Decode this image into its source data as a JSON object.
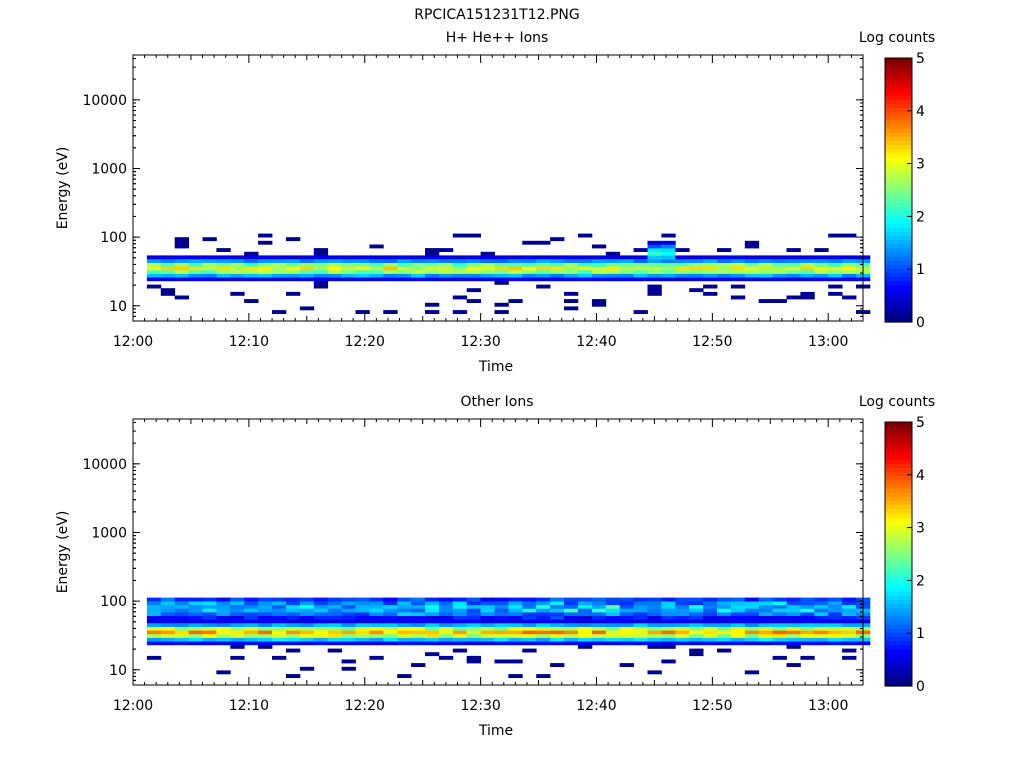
{
  "title": "RPCICA151231T12.PNG",
  "colors": {
    "colormap": [
      "#00007f",
      "#0000ff",
      "#0080ff",
      "#00ffff",
      "#80ff80",
      "#ffff00",
      "#ff8000",
      "#ff0000",
      "#7f0000"
    ]
  },
  "chart_data": [
    {
      "type": "heatmap",
      "title": "H+ He++ Ions",
      "xlabel": "Time",
      "ylabel": "Energy (eV)",
      "xlim": [
        "12:00",
        "13:03"
      ],
      "ylim": [
        6,
        45000
      ],
      "yscale": "log",
      "x_ticks": [
        "12:00",
        "12:10",
        "12:20",
        "12:30",
        "12:40",
        "12:50",
        "13:00"
      ],
      "y_ticks": [
        "10",
        "100",
        "1000",
        "10000"
      ],
      "colorbar": {
        "label": "Log counts",
        "range": [
          0,
          5
        ],
        "ticks": [
          "0",
          "1",
          "2",
          "3",
          "4",
          "5"
        ]
      },
      "band": {
        "t_start_min": 1.2,
        "t_end_min": 63,
        "peak_energy_eV": 33,
        "peak_log_counts": 3.0,
        "bright_time_min": 45,
        "bright_log_counts": 2.2
      }
    },
    {
      "type": "heatmap",
      "title": "Other Ions",
      "xlabel": "Time",
      "ylabel": "Energy (eV)",
      "xlim": [
        "12:00",
        "13:03"
      ],
      "ylim": [
        6,
        45000
      ],
      "yscale": "log",
      "x_ticks": [
        "12:00",
        "12:10",
        "12:20",
        "12:30",
        "12:40",
        "12:50",
        "13:00"
      ],
      "y_ticks": [
        "10",
        "100",
        "1000",
        "10000"
      ],
      "colorbar": {
        "label": "Log counts",
        "range": [
          0,
          5
        ],
        "ticks": [
          "0",
          "1",
          "2",
          "3",
          "4",
          "5"
        ]
      },
      "band": {
        "t_start_min": 1.2,
        "t_end_min": 63,
        "peak_energy_eV": 33,
        "peak_log_counts": 3.4,
        "upper_energy_eV": 75,
        "upper_log_counts": 1.6
      }
    }
  ]
}
